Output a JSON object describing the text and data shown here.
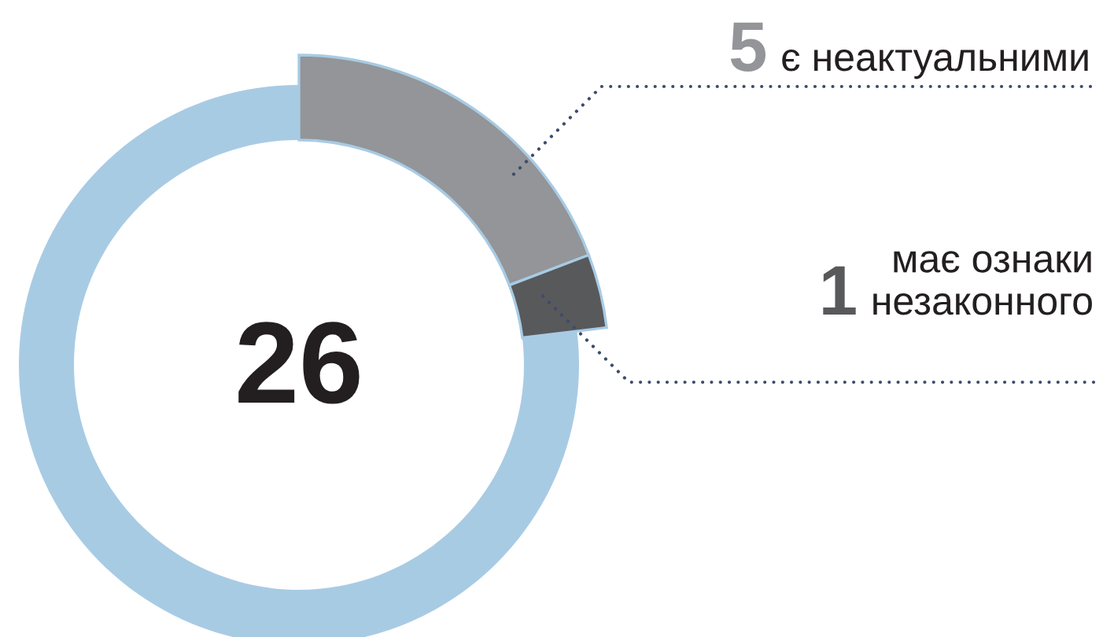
{
  "chart_data": {
    "type": "donut",
    "categories": [
      "є неактуальними",
      "має ознаки\nнезаконного",
      null
    ],
    "values": [
      5,
      1,
      20
    ],
    "colors": [
      "#939598",
      "#58595b",
      "#a8cbe4"
    ],
    "value_labels": [
      "5",
      "1",
      null
    ],
    "annotations": [
      "26"
    ]
  }
}
